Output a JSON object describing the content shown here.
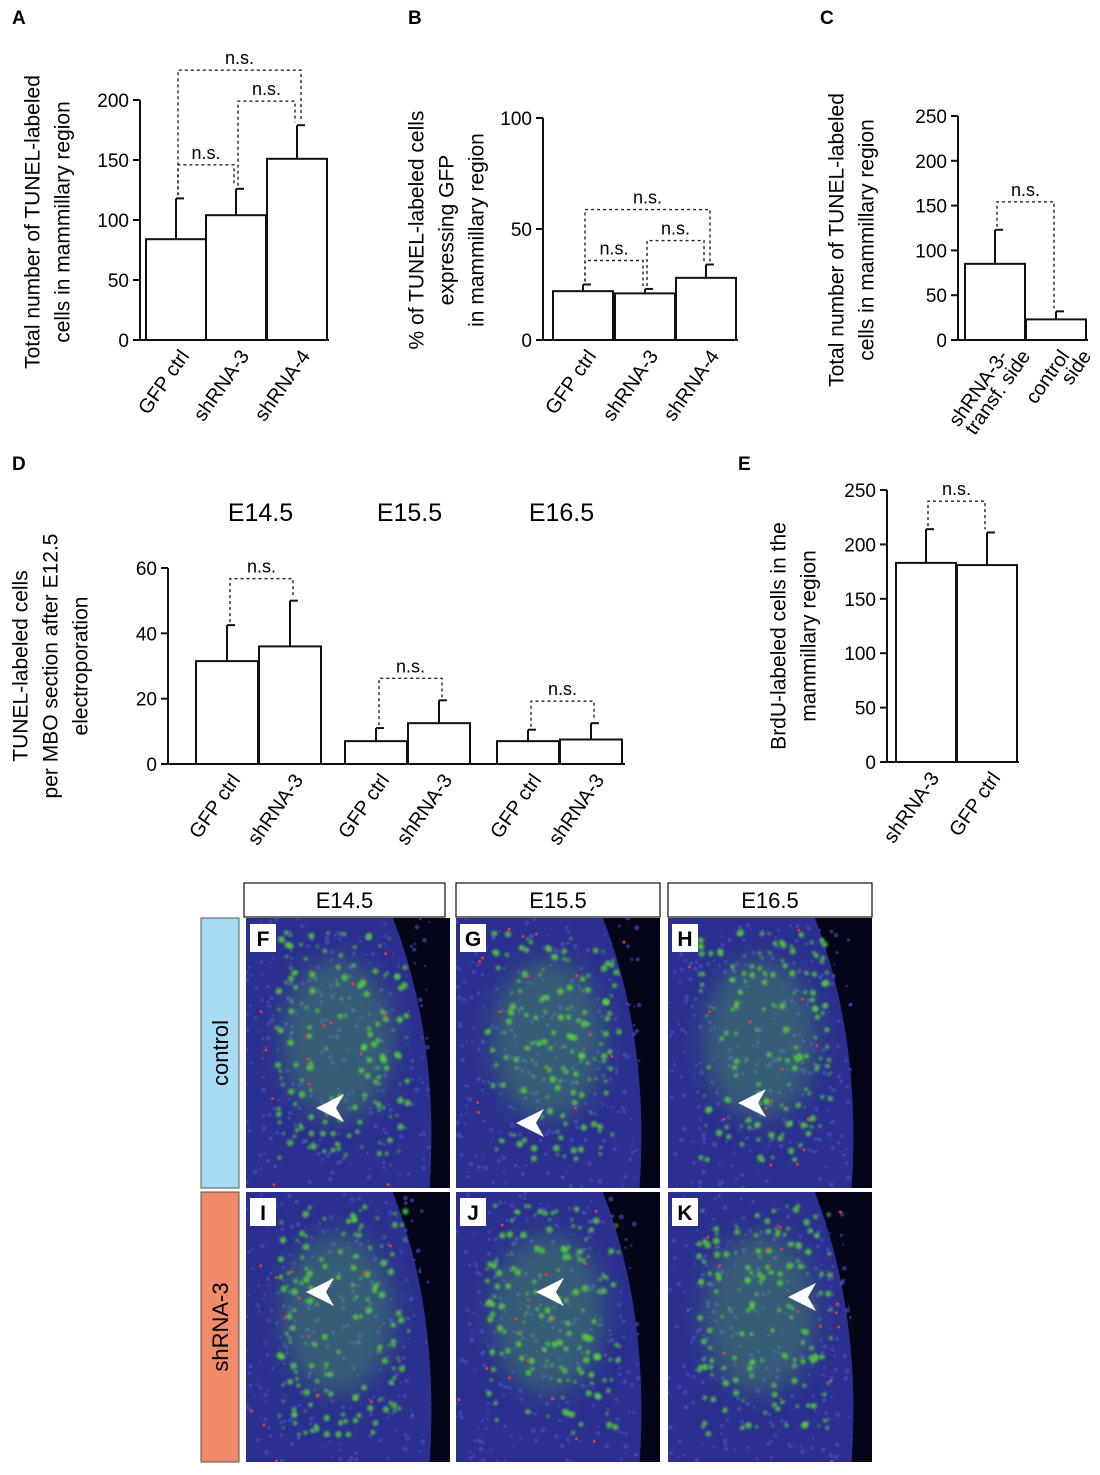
{
  "chart_data": [
    {
      "id": "A",
      "type": "bar",
      "panel_label": "A",
      "ylabel_lines": [
        "Total number of TUNEL-labeled",
        "cells in mammillary region"
      ],
      "categories": [
        "GFP ctrl",
        "shRNA-3",
        "shRNA-4"
      ],
      "values": [
        84,
        104,
        151
      ],
      "errors": [
        34,
        22,
        28
      ],
      "ylim": [
        0,
        200
      ],
      "yticks": [
        0,
        50,
        100,
        150,
        200
      ],
      "significance": [
        {
          "from": 0,
          "to": 1,
          "label": "n.s."
        },
        {
          "from": 1,
          "to": 2,
          "label": "n.s."
        },
        {
          "from": 0,
          "to": 2,
          "label": "n.s."
        }
      ]
    },
    {
      "id": "B",
      "type": "bar",
      "panel_label": "B",
      "ylabel_lines": [
        "% of TUNEL-labeled cells",
        "expressing GFP",
        "in mammillary region"
      ],
      "categories": [
        "GFP ctrl",
        "shRNA-3",
        "shRNA-4"
      ],
      "values": [
        22,
        21,
        28
      ],
      "errors": [
        3,
        2,
        6
      ],
      "ylim": [
        0,
        100
      ],
      "yticks": [
        0,
        50,
        100
      ],
      "significance": [
        {
          "from": 0,
          "to": 1,
          "label": "n.s."
        },
        {
          "from": 1,
          "to": 2,
          "label": "n.s."
        },
        {
          "from": 0,
          "to": 2,
          "label": "n.s."
        }
      ]
    },
    {
      "id": "C",
      "type": "bar",
      "panel_label": "C",
      "ylabel_lines": [
        "Total number of TUNEL-labeled",
        "cells in mammillary region"
      ],
      "categories": [
        [
          "shRNA-3-",
          "transf. side"
        ],
        [
          "control",
          "side"
        ]
      ],
      "values": [
        85,
        23
      ],
      "errors": [
        38,
        9
      ],
      "ylim": [
        0,
        250
      ],
      "yticks": [
        0,
        50,
        100,
        150,
        200,
        250
      ],
      "significance": [
        {
          "from": 0,
          "to": 1,
          "label": "n.s."
        }
      ]
    },
    {
      "id": "D",
      "type": "bar",
      "panel_label": "D",
      "ylabel_lines": [
        "TUNEL-labeled cells",
        "per MBO section after E12.5",
        "electroporation"
      ],
      "groups": [
        {
          "label": "E14.5",
          "categories": [
            "GFP ctrl",
            "shRNA-3"
          ],
          "values": [
            31.5,
            36
          ],
          "errors": [
            11,
            14
          ]
        },
        {
          "label": "E15.5",
          "categories": [
            "GFP ctrl",
            "shRNA-3"
          ],
          "values": [
            7,
            12.5
          ],
          "errors": [
            4,
            7
          ]
        },
        {
          "label": "E16.5",
          "categories": [
            "GFP ctrl",
            "shRNA-3"
          ],
          "values": [
            7,
            7.5
          ],
          "errors": [
            3.5,
            5
          ]
        }
      ],
      "ylim": [
        0,
        60
      ],
      "yticks": [
        0,
        20,
        40,
        60
      ],
      "significance_label": "n.s."
    },
    {
      "id": "E",
      "type": "bar",
      "panel_label": "E",
      "ylabel_lines": [
        "BrdU-labeled cells in the",
        "mammillary region"
      ],
      "categories": [
        "shRNA-3",
        "GFP ctrl"
      ],
      "values": [
        183,
        181
      ],
      "errors": [
        31,
        30
      ],
      "ylim": [
        0,
        250
      ],
      "yticks": [
        0,
        50,
        100,
        150,
        200,
        250
      ],
      "significance": [
        {
          "from": 0,
          "to": 1,
          "label": "n.s."
        }
      ]
    }
  ],
  "micrographs": {
    "columns": [
      "E14.5",
      "E15.5",
      "E16.5"
    ],
    "rows": [
      {
        "label": "control",
        "color": "#a8dcf5",
        "panels": [
          "F",
          "G",
          "H"
        ]
      },
      {
        "label": "shRNA-3",
        "color": "#f08a6a",
        "panels": [
          "I",
          "J",
          "K"
        ]
      }
    ],
    "colors": {
      "nuclei": "#2b2f8f",
      "gfp": "#57d13a",
      "tunel": "#ff3b2a",
      "background": "#05051a"
    }
  }
}
